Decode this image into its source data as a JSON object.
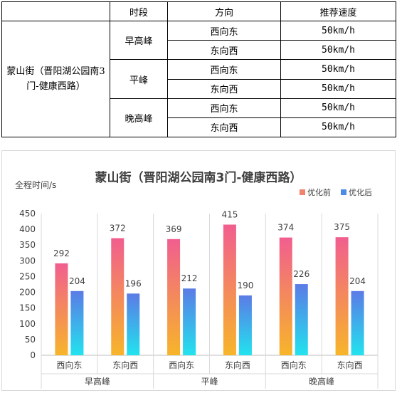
{
  "table": {
    "headers": {
      "period": "时段",
      "direction": "方向",
      "speed": "推荐速度"
    },
    "road": "蒙山街（晋阳湖公园南3门-健康西路）",
    "rows": [
      {
        "period": "早高峰",
        "direction": "西向东",
        "speed": "50km/h"
      },
      {
        "period": "早高峰",
        "direction": "东向西",
        "speed": "50km/h"
      },
      {
        "period": "平峰",
        "direction": "西向东",
        "speed": "50km/h"
      },
      {
        "period": "平峰",
        "direction": "东向西",
        "speed": "50km/h"
      },
      {
        "period": "晚高峰",
        "direction": "西向东",
        "speed": "50km/h"
      },
      {
        "period": "晚高峰",
        "direction": "东向西",
        "speed": "50km/h"
      }
    ]
  },
  "chart_data": {
    "type": "bar",
    "title": "蒙山街（晋阳湖公园南3门-健康西路）",
    "ylabel": "全程时间/s",
    "xlabel": "",
    "ylim": [
      0,
      450
    ],
    "yticks": [
      0,
      50,
      100,
      150,
      200,
      250,
      300,
      350,
      400,
      450
    ],
    "grid": false,
    "legend_position": "top-right",
    "groups": [
      "早高峰",
      "平峰",
      "晚高峰"
    ],
    "categories": [
      "西向东",
      "东向西",
      "西向东",
      "东向西",
      "西向东",
      "东向西"
    ],
    "series": [
      {
        "name": "优化前",
        "values": [
          292,
          372,
          369,
          415,
          374,
          375
        ],
        "color_top": "#f15e8f",
        "color_bottom": "#f7b52a"
      },
      {
        "name": "优化后",
        "values": [
          204,
          196,
          212,
          190,
          226,
          204
        ],
        "color_top": "#5b7be6",
        "color_bottom": "#22e3ee"
      }
    ],
    "legend_colors": [
      "#f0826e",
      "#4c8be6"
    ]
  }
}
